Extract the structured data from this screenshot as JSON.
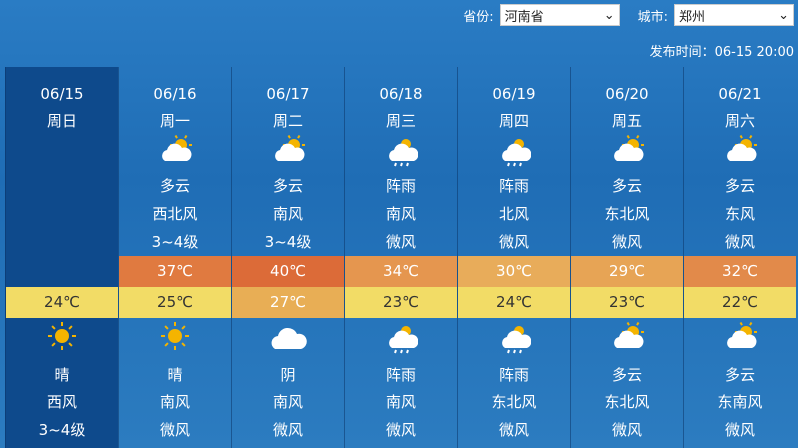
{
  "header": {
    "province_label": "省份:",
    "province": "河南省",
    "city_label": "城市:",
    "city": "郑州",
    "publish": "发布时间：06-15 20:00"
  },
  "days": [
    {
      "date": "06/15",
      "weekday": "周日",
      "day": null,
      "high": null,
      "low": "24℃",
      "low_color": "#f2dc66",
      "low_text": "#333",
      "night": {
        "icon": "sun-icon",
        "weather": "晴",
        "wind": "西风",
        "level": "3~4级"
      }
    },
    {
      "date": "06/16",
      "weekday": "周一",
      "day": {
        "icon": "partly-cloudy-icon",
        "weather": "多云",
        "wind": "西北风",
        "level": "3~4级"
      },
      "high": "37℃",
      "high_color": "#e07a40",
      "low": "25℃",
      "low_color": "#f2dc66",
      "low_text": "#333",
      "night": {
        "icon": "sun-icon",
        "weather": "晴",
        "wind": "南风",
        "level": "微风"
      }
    },
    {
      "date": "06/17",
      "weekday": "周二",
      "day": {
        "icon": "partly-cloudy-icon",
        "weather": "多云",
        "wind": "南风",
        "level": "3~4级"
      },
      "high": "40℃",
      "high_color": "#dc6b38",
      "low": "27℃",
      "low_color": "#e8ae55",
      "low_text": "#fff",
      "night": {
        "icon": "cloud-icon",
        "weather": "阴",
        "wind": "南风",
        "level": "微风"
      }
    },
    {
      "date": "06/18",
      "weekday": "周三",
      "day": {
        "icon": "rain-icon",
        "weather": "阵雨",
        "wind": "南风",
        "level": "微风"
      },
      "high": "34℃",
      "high_color": "#e5964f",
      "low": "23℃",
      "low_color": "#f2dc66",
      "low_text": "#333",
      "night": {
        "icon": "rain-icon",
        "weather": "阵雨",
        "wind": "南风",
        "level": "微风"
      }
    },
    {
      "date": "06/19",
      "weekday": "周四",
      "day": {
        "icon": "rain-icon",
        "weather": "阵雨",
        "wind": "北风",
        "level": "微风"
      },
      "high": "30℃",
      "high_color": "#e8ac5a",
      "low": "24℃",
      "low_color": "#f2dc66",
      "low_text": "#333",
      "night": {
        "icon": "rain-icon",
        "weather": "阵雨",
        "wind": "东北风",
        "level": "微风"
      }
    },
    {
      "date": "06/20",
      "weekday": "周五",
      "day": {
        "icon": "partly-cloudy-icon",
        "weather": "多云",
        "wind": "东北风",
        "level": "微风"
      },
      "high": "29℃",
      "high_color": "#e7a455",
      "low": "23℃",
      "low_color": "#f2dc66",
      "low_text": "#333",
      "night": {
        "icon": "partly-cloudy-icon",
        "weather": "多云",
        "wind": "东北风",
        "level": "微风"
      }
    },
    {
      "date": "06/21",
      "weekday": "周六",
      "day": {
        "icon": "partly-cloudy-icon",
        "weather": "多云",
        "wind": "东风",
        "level": "微风"
      },
      "high": "32℃",
      "high_color": "#e28a4a",
      "low": "22℃",
      "low_color": "#f2dc66",
      "low_text": "#333",
      "night": {
        "icon": "partly-cloudy-icon",
        "weather": "多云",
        "wind": "东南风",
        "level": "微风"
      }
    }
  ]
}
